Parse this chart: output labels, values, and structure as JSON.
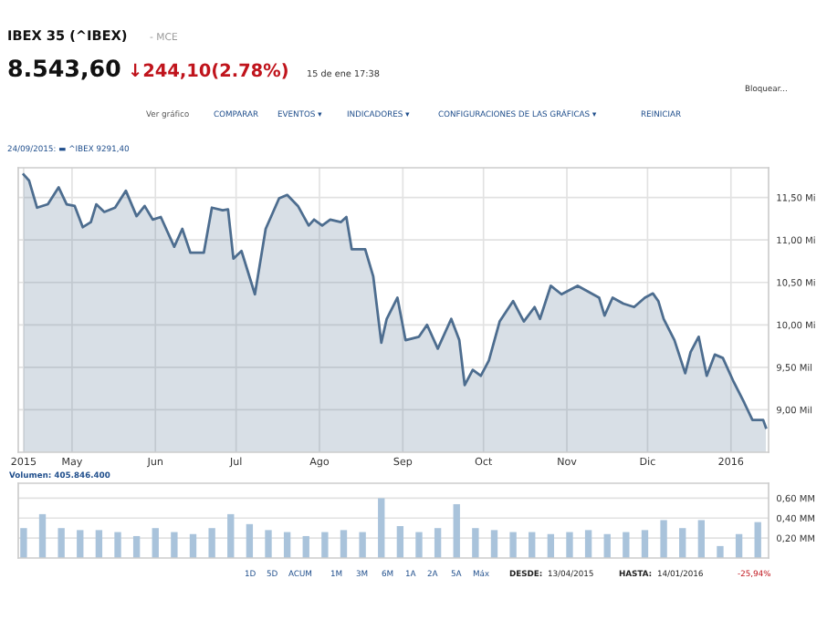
{
  "chart_data": [
    {
      "type": "area",
      "annotations": [
        "IBEX 35 (^IBEX)",
        "- MCE",
        "8.543,60",
        "↓244,10(2.78%)",
        "15 de ene 17:38",
        "Bloquear...",
        "Ver gráfico",
        "COMPARAR",
        "EVENTOS ▾",
        "INDICADORES ▾",
        "CONFIGURACIONES DE LAS GRÁFICAS ▾",
        "REINICIAR",
        "24/09/2015: ▬ ^IBEX 9291,40"
      ],
      "x": [
        "2015-04-13",
        "2015-04-15",
        "2015-04-18",
        "2015-04-22",
        "2015-04-26",
        "2015-04-29",
        "2015-05-02",
        "2015-05-05",
        "2015-05-08",
        "2015-05-10",
        "2015-05-13",
        "2015-05-17",
        "2015-05-21",
        "2015-05-25",
        "2015-05-28",
        "2015-05-31",
        "2015-06-03",
        "2015-06-08",
        "2015-06-11",
        "2015-06-14",
        "2015-06-19",
        "2015-06-22",
        "2015-06-26",
        "2015-06-28",
        "2015-06-30",
        "2015-07-03",
        "2015-07-08",
        "2015-07-12",
        "2015-07-17",
        "2015-07-20",
        "2015-07-24",
        "2015-07-28",
        "2015-07-30",
        "2015-08-02",
        "2015-08-05",
        "2015-08-09",
        "2015-08-11",
        "2015-08-13",
        "2015-08-18",
        "2015-08-21",
        "2015-08-24",
        "2015-08-26",
        "2015-08-30",
        "2015-09-02",
        "2015-09-07",
        "2015-09-10",
        "2015-09-14",
        "2015-09-19",
        "2015-09-22",
        "2015-09-24",
        "2015-09-27",
        "2015-09-30",
        "2015-10-03",
        "2015-10-07",
        "2015-10-12",
        "2015-10-16",
        "2015-10-20",
        "2015-10-22",
        "2015-10-26",
        "2015-10-30",
        "2015-11-05",
        "2015-11-09",
        "2015-11-13",
        "2015-11-15",
        "2015-11-18",
        "2015-11-22",
        "2015-11-26",
        "2015-11-30",
        "2015-12-03",
        "2015-12-05",
        "2015-12-07",
        "2015-12-11",
        "2015-12-15",
        "2015-12-17",
        "2015-12-20",
        "2015-12-23",
        "2015-12-26",
        "2015-12-29",
        "2016-01-02",
        "2016-01-06",
        "2016-01-09",
        "2016-01-13",
        "2016-01-14"
      ],
      "series": [
        {
          "color": "#4d6d8f",
          "values": [
            11.77,
            11.7,
            11.38,
            11.42,
            11.62,
            11.42,
            11.4,
            11.15,
            11.21,
            11.42,
            11.33,
            11.38,
            11.58,
            11.28,
            11.4,
            11.24,
            11.27,
            10.92,
            11.13,
            10.85,
            10.85,
            11.38,
            11.35,
            11.36,
            10.78,
            10.87,
            10.36,
            11.13,
            11.49,
            11.53,
            11.4,
            11.17,
            11.24,
            11.17,
            11.24,
            11.21,
            11.27,
            10.89,
            10.89,
            10.57,
            9.79,
            10.07,
            10.32,
            9.82,
            9.86,
            10.0,
            9.72,
            10.07,
            9.82,
            9.29,
            9.47,
            9.4,
            9.58,
            10.04,
            10.28,
            10.04,
            10.21,
            10.07,
            10.46,
            10.36,
            10.46,
            10.39,
            10.32,
            10.11,
            10.32,
            10.25,
            10.21,
            10.32,
            10.37,
            10.28,
            10.07,
            9.82,
            9.43,
            9.68,
            9.86,
            9.4,
            9.65,
            9.61,
            9.33,
            9.08,
            8.88,
            8.88,
            8.79
          ]
        }
      ],
      "xlim": [
        "2015-04-11",
        "2016-01-15"
      ],
      "xticks": [
        {
          "value": "2015-04-13",
          "label": "2015"
        },
        {
          "value": "2015-05-01",
          "label": "May"
        },
        {
          "value": "2015-06-01",
          "label": "Jun"
        },
        {
          "value": "2015-07-01",
          "label": "Jul"
        },
        {
          "value": "2015-08-01",
          "label": "Ago"
        },
        {
          "value": "2015-09-01",
          "label": "Sep"
        },
        {
          "value": "2015-10-01",
          "label": "Oct"
        },
        {
          "value": "2015-11-01",
          "label": "Nov"
        },
        {
          "value": "2015-12-01",
          "label": "Dic"
        },
        {
          "value": "2016-01-01",
          "label": "2016"
        }
      ],
      "ylim": [
        8.5,
        11.85
      ],
      "yticks": [
        {
          "value": 9.0,
          "label": "9,00 Mil"
        },
        {
          "value": 9.5,
          "label": "9,50 Mil"
        },
        {
          "value": 10.0,
          "label": "10,00 Mi"
        },
        {
          "value": 10.5,
          "label": "10,50 Mi"
        },
        {
          "value": 11.0,
          "label": "11,00 Mi"
        },
        {
          "value": 11.5,
          "label": "11,50 Mi"
        }
      ],
      "grid": true
    },
    {
      "type": "bar",
      "annotations": [
        "Volumen: 405.846.400",
        "1D",
        "5D",
        "ACUM",
        "1M",
        "3M",
        "6M",
        "1A",
        "2A",
        "5A",
        "Máx",
        "DESDE:",
        "13/04/2015",
        "HASTA:",
        "14/01/2016",
        "-25,94%"
      ],
      "x": [
        "2015-04-13",
        "2015-04-20",
        "2015-04-27",
        "2015-05-04",
        "2015-05-11",
        "2015-05-18",
        "2015-05-25",
        "2015-06-01",
        "2015-06-08",
        "2015-06-15",
        "2015-06-22",
        "2015-06-29",
        "2015-07-06",
        "2015-07-13",
        "2015-07-20",
        "2015-07-27",
        "2015-08-03",
        "2015-08-10",
        "2015-08-17",
        "2015-08-24",
        "2015-08-31",
        "2015-09-07",
        "2015-09-14",
        "2015-09-21",
        "2015-09-28",
        "2015-10-05",
        "2015-10-12",
        "2015-10-19",
        "2015-10-26",
        "2015-11-02",
        "2015-11-09",
        "2015-11-16",
        "2015-11-23",
        "2015-11-30",
        "2015-12-07",
        "2015-12-14",
        "2015-12-21",
        "2015-12-28",
        "2016-01-04",
        "2016-01-11"
      ],
      "series": [
        {
          "color": "#a9c3db",
          "values": [
            0.3,
            0.44,
            0.3,
            0.28,
            0.28,
            0.26,
            0.22,
            0.3,
            0.26,
            0.24,
            0.3,
            0.44,
            0.34,
            0.28,
            0.26,
            0.22,
            0.26,
            0.28,
            0.26,
            0.6,
            0.32,
            0.26,
            0.3,
            0.54,
            0.3,
            0.28,
            0.26,
            0.26,
            0.24,
            0.26,
            0.28,
            0.24,
            0.26,
            0.28,
            0.38,
            0.3,
            0.38,
            0.12,
            0.24,
            0.36
          ]
        }
      ],
      "xlim": [
        "2015-04-11",
        "2016-01-15"
      ],
      "ylim": [
        0,
        0.75
      ],
      "yticks": [
        {
          "value": 0.2,
          "label": "0,20 MM"
        },
        {
          "value": 0.4,
          "label": "0,40 MM"
        },
        {
          "value": 0.6,
          "label": "0,60 MM"
        }
      ],
      "grid": true,
      "tick_labels": "y"
    }
  ]
}
